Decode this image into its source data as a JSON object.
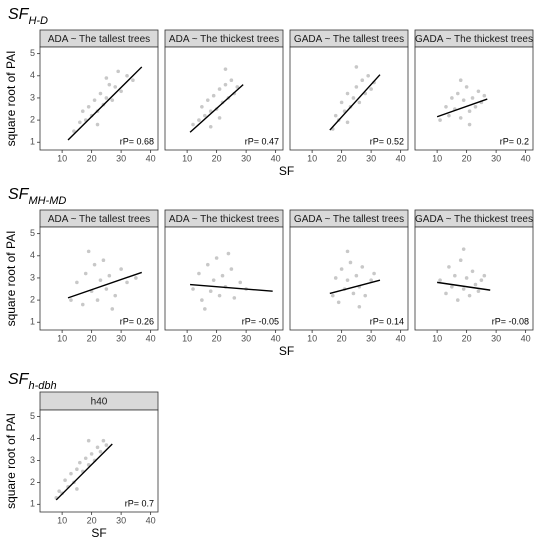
{
  "rows": [
    {
      "title": "SF",
      "subscript": "H-D",
      "xlabel": "SF",
      "ylabel": "square root of PAI",
      "charts": [
        {
          "type": "scatter",
          "strip": "ADA ~ The tallest trees",
          "annotation": "rP= 0.68",
          "point_color": "#c8c8c8",
          "line_color": "#000000",
          "xlim": [
            2.5,
            42.5
          ],
          "ylim": [
            0.65,
            5.3
          ],
          "xticks": [
            10,
            20,
            30,
            40
          ],
          "yticks": [
            1,
            2,
            3,
            4,
            5
          ],
          "x": [
            14,
            16,
            18,
            19,
            20,
            21,
            22,
            23,
            24,
            25,
            26,
            27,
            28,
            30,
            32,
            34,
            17,
            22,
            25,
            29
          ],
          "y": [
            1.5,
            1.9,
            2.0,
            2.6,
            2.2,
            2.9,
            2.4,
            3.2,
            2.7,
            3.0,
            3.6,
            2.9,
            3.5,
            3.3,
            4.0,
            3.8,
            2.4,
            1.8,
            3.9,
            4.2
          ],
          "fit": {
            "x": [
              12,
              37
            ],
            "y": [
              1.1,
              4.4
            ]
          }
        },
        {
          "type": "scatter",
          "strip": "ADA ~ The thickest trees",
          "annotation": "rP= 0.47",
          "point_color": "#c8c8c8",
          "line_color": "#000000",
          "xlim": [
            2.5,
            42.5
          ],
          "ylim": [
            0.65,
            5.3
          ],
          "xticks": [
            10,
            20,
            30,
            40
          ],
          "yticks": [
            1,
            2,
            3,
            4,
            5
          ],
          "x": [
            12,
            14,
            15,
            16,
            17,
            18,
            19,
            20,
            21,
            22,
            23,
            24,
            25,
            26,
            27,
            18,
            21,
            23
          ],
          "y": [
            1.8,
            2.0,
            2.6,
            2.2,
            2.9,
            2.4,
            3.1,
            2.5,
            3.4,
            2.8,
            3.6,
            3.0,
            3.8,
            3.2,
            3.5,
            1.7,
            2.1,
            4.3
          ],
          "fit": {
            "x": [
              11,
              29
            ],
            "y": [
              1.45,
              3.6
            ]
          }
        },
        {
          "type": "scatter",
          "strip": "GADA ~ The tallest trees",
          "annotation": "rP= 0.52",
          "point_color": "#c8c8c8",
          "line_color": "#000000",
          "xlim": [
            2.5,
            42.5
          ],
          "ylim": [
            0.65,
            5.3
          ],
          "xticks": [
            10,
            20,
            30,
            40
          ],
          "yticks": [
            1,
            2,
            3,
            4,
            5
          ],
          "x": [
            17,
            18,
            19,
            20,
            21,
            22,
            23,
            24,
            25,
            26,
            27,
            28,
            29,
            30,
            31,
            22,
            25
          ],
          "y": [
            1.6,
            2.2,
            2.0,
            2.8,
            2.4,
            3.2,
            2.6,
            3.0,
            3.5,
            2.8,
            3.8,
            3.2,
            4.0,
            3.4,
            3.7,
            1.9,
            4.4
          ],
          "fit": {
            "x": [
              16,
              33
            ],
            "y": [
              1.55,
              4.05
            ]
          }
        },
        {
          "type": "scatter",
          "strip": "GADA ~ The thickest trees",
          "annotation": "rP= 0.2",
          "point_color": "#c8c8c8",
          "line_color": "#000000",
          "xlim": [
            2.5,
            42.5
          ],
          "ylim": [
            0.65,
            5.3
          ],
          "xticks": [
            10,
            20,
            30,
            40
          ],
          "yticks": [
            1,
            2,
            3,
            4,
            5
          ],
          "x": [
            11,
            13,
            14,
            15,
            16,
            17,
            18,
            19,
            20,
            21,
            22,
            23,
            24,
            25,
            26,
            18,
            21
          ],
          "y": [
            2.0,
            2.6,
            2.2,
            3.0,
            2.5,
            3.2,
            2.1,
            2.9,
            3.5,
            2.4,
            3.0,
            2.6,
            3.3,
            2.8,
            3.1,
            3.8,
            1.8
          ],
          "fit": {
            "x": [
              10,
              27
            ],
            "y": [
              2.15,
              2.95
            ]
          }
        }
      ]
    },
    {
      "title": "SF",
      "subscript": "MH-MD",
      "xlabel": "SF",
      "ylabel": "square root of PAI",
      "charts": [
        {
          "type": "scatter",
          "strip": "ADA ~ The tallest trees",
          "annotation": "rP= 0.26",
          "point_color": "#c8c8c8",
          "line_color": "#000000",
          "xlim": [
            2.5,
            42.5
          ],
          "ylim": [
            0.65,
            5.3
          ],
          "xticks": [
            10,
            20,
            30,
            40
          ],
          "yticks": [
            1,
            2,
            3,
            4,
            5
          ],
          "x": [
            13,
            15,
            17,
            18,
            20,
            21,
            22,
            23,
            24,
            25,
            26,
            28,
            30,
            32,
            35,
            19,
            27
          ],
          "y": [
            2.0,
            2.8,
            1.8,
            3.2,
            2.4,
            3.6,
            2.0,
            2.9,
            3.8,
            2.5,
            3.1,
            2.2,
            3.4,
            2.8,
            3.0,
            4.2,
            1.6
          ],
          "fit": {
            "x": [
              12,
              37
            ],
            "y": [
              2.1,
              3.25
            ]
          }
        },
        {
          "type": "scatter",
          "strip": "ADA ~ The thickest trees",
          "annotation": "rP= -0.05",
          "point_color": "#c8c8c8",
          "line_color": "#000000",
          "xlim": [
            2.5,
            42.5
          ],
          "ylim": [
            0.65,
            5.3
          ],
          "xticks": [
            10,
            20,
            30,
            40
          ],
          "yticks": [
            1,
            2,
            3,
            4,
            5
          ],
          "x": [
            12,
            14,
            15,
            17,
            18,
            19,
            20,
            21,
            22,
            23,
            25,
            26,
            28,
            16,
            24,
            30
          ],
          "y": [
            2.5,
            3.2,
            2.0,
            3.6,
            2.4,
            2.9,
            3.9,
            2.2,
            3.1,
            2.6,
            3.4,
            2.1,
            2.8,
            1.6,
            4.1,
            2.5
          ],
          "fit": {
            "x": [
              11,
              39
            ],
            "y": [
              2.7,
              2.4
            ]
          }
        },
        {
          "type": "scatter",
          "strip": "GADA ~ The tallest trees",
          "annotation": "rP= 0.14",
          "point_color": "#c8c8c8",
          "line_color": "#000000",
          "xlim": [
            2.5,
            42.5
          ],
          "ylim": [
            0.65,
            5.3
          ],
          "xticks": [
            10,
            20,
            30,
            40
          ],
          "yticks": [
            1,
            2,
            3,
            4,
            5
          ],
          "x": [
            17,
            18,
            19,
            20,
            21,
            22,
            23,
            24,
            25,
            26,
            27,
            28,
            30,
            31,
            22,
            26
          ],
          "y": [
            2.2,
            3.0,
            1.9,
            3.4,
            2.5,
            2.9,
            3.7,
            2.3,
            3.1,
            2.6,
            3.5,
            2.2,
            2.9,
            3.2,
            4.2,
            1.7
          ],
          "fit": {
            "x": [
              16,
              33
            ],
            "y": [
              2.3,
              2.9
            ]
          }
        },
        {
          "type": "scatter",
          "strip": "GADA ~ The thickest trees",
          "annotation": "rP= -0.08",
          "point_color": "#c8c8c8",
          "line_color": "#000000",
          "xlim": [
            2.5,
            42.5
          ],
          "ylim": [
            0.65,
            5.3
          ],
          "xticks": [
            10,
            20,
            30,
            40
          ],
          "yticks": [
            1,
            2,
            3,
            4,
            5
          ],
          "x": [
            11,
            13,
            14,
            15,
            16,
            17,
            18,
            19,
            20,
            21,
            22,
            23,
            24,
            25,
            26,
            19
          ],
          "y": [
            2.9,
            2.3,
            3.5,
            2.6,
            3.1,
            2.0,
            3.8,
            2.5,
            3.0,
            2.2,
            3.3,
            2.7,
            2.4,
            2.9,
            3.1,
            4.3
          ],
          "fit": {
            "x": [
              10,
              28
            ],
            "y": [
              2.8,
              2.45
            ]
          }
        }
      ]
    },
    {
      "title": "SF",
      "subscript": "h-dbh",
      "xlabel": "SF",
      "ylabel": "square root of PAI",
      "charts": [
        {
          "type": "scatter",
          "strip": "h40",
          "annotation": "rP= 0.7",
          "point_color": "#c8c8c8",
          "line_color": "#000000",
          "xlim": [
            2.5,
            42.5
          ],
          "ylim": [
            0.65,
            5.3
          ],
          "xticks": [
            10,
            20,
            30,
            40
          ],
          "yticks": [
            1,
            2,
            3,
            4,
            5
          ],
          "x": [
            8,
            9,
            10,
            11,
            12,
            13,
            14,
            15,
            16,
            17,
            18,
            19,
            20,
            21,
            22,
            23,
            24,
            25,
            15,
            19
          ],
          "y": [
            1.3,
            1.6,
            1.5,
            2.1,
            1.8,
            2.4,
            2.0,
            2.6,
            2.9,
            2.5,
            3.1,
            2.8,
            3.3,
            3.0,
            3.6,
            3.4,
            3.9,
            3.7,
            1.7,
            3.9
          ],
          "fit": {
            "x": [
              8,
              27
            ],
            "y": [
              1.2,
              3.75
            ]
          }
        }
      ]
    }
  ]
}
